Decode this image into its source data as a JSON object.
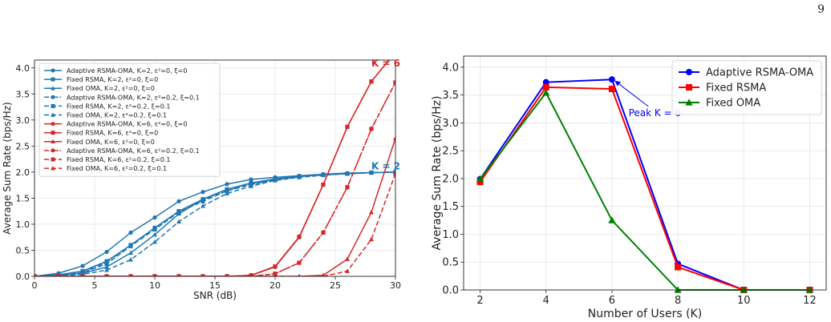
{
  "page_number": "9",
  "chart_data": [
    {
      "type": "line",
      "xlabel": "SNR (dB)",
      "ylabel": "Average Sum Rate (bps/Hz)",
      "xlim": [
        0,
        30
      ],
      "ylim": [
        0,
        4.15
      ],
      "xticks": [
        "0",
        "5",
        "10",
        "15",
        "20",
        "25",
        "30"
      ],
      "yticks": [
        "0.0",
        "0.5",
        "1.0",
        "1.5",
        "2.0",
        "2.5",
        "3.0",
        "3.5",
        "4.0"
      ],
      "grid": true,
      "legend_position": "top-left",
      "colors": {
        "k2": "#1f77b4",
        "k6": "#d62728"
      },
      "annotations": [
        {
          "text": "K = 6",
          "x": 29.2,
          "y": 4.03,
          "color": "#d62728"
        },
        {
          "text": "K = 2",
          "x": 29.2,
          "y": 2.05,
          "color": "#1f77b4"
        }
      ],
      "x": [
        0,
        2,
        4,
        6,
        8,
        10,
        12,
        14,
        16,
        18,
        20,
        22,
        24,
        26,
        28,
        30
      ],
      "series": [
        {
          "name": "Adaptive RSMA-OMA,  K=2, ε²=0, ξ=0",
          "color": "#1f77b4",
          "dash": "solid",
          "marker": "circle",
          "values": [
            0.0,
            0.06,
            0.2,
            0.47,
            0.84,
            1.13,
            1.44,
            1.62,
            1.77,
            1.86,
            1.9,
            1.93,
            1.96,
            1.98,
            1.99,
            2.0
          ]
        },
        {
          "name": "Fixed RSMA,  K=2, ε²=0, ξ=0",
          "color": "#1f77b4",
          "dash": "solid",
          "marker": "square",
          "values": [
            0.0,
            0.03,
            0.1,
            0.29,
            0.6,
            0.93,
            1.25,
            1.48,
            1.67,
            1.79,
            1.87,
            1.92,
            1.95,
            1.97,
            1.99,
            2.0
          ]
        },
        {
          "name": "Fixed OMA,  K=2, ε²=0, ξ=0",
          "color": "#1f77b4",
          "dash": "solid",
          "marker": "triangle",
          "values": [
            0.0,
            0.02,
            0.06,
            0.18,
            0.45,
            0.8,
            1.2,
            1.48,
            1.67,
            1.79,
            1.87,
            1.92,
            1.95,
            1.97,
            1.99,
            2.0
          ]
        },
        {
          "name": "Adaptive RSMA-OMA,  K=2, ε²=0.2, ξ=0.1",
          "color": "#1f77b4",
          "dash": "dashdot",
          "marker": "circle",
          "values": [
            0.0,
            0.02,
            0.08,
            0.27,
            0.6,
            0.93,
            1.25,
            1.46,
            1.65,
            1.77,
            1.85,
            1.91,
            1.95,
            1.97,
            1.99,
            2.0
          ]
        },
        {
          "name": "Fixed RSMA,  K=2, ε²=0.2, ξ=0.1",
          "color": "#1f77b4",
          "dash": "dashed",
          "marker": "square",
          "values": [
            0.0,
            0.02,
            0.07,
            0.24,
            0.58,
            0.9,
            1.23,
            1.44,
            1.64,
            1.76,
            1.85,
            1.91,
            1.95,
            1.97,
            1.99,
            2.0
          ]
        },
        {
          "name": "Fixed OMA,  K=2, ε²=0.2, ξ=0.1",
          "color": "#1f77b4",
          "dash": "dashed",
          "marker": "triangle",
          "values": [
            0.0,
            0.01,
            0.04,
            0.12,
            0.32,
            0.66,
            1.05,
            1.35,
            1.59,
            1.73,
            1.84,
            1.9,
            1.94,
            1.97,
            1.99,
            2.0
          ]
        },
        {
          "name": "Adaptive RSMA-OMA,  K=6, ε²=0, ξ=0",
          "color": "#d62728",
          "dash": "solid",
          "marker": "circle",
          "values": [
            0,
            0,
            0,
            0,
            0,
            0,
            0,
            0,
            0,
            0.02,
            0.18,
            0.75,
            1.76,
            2.87,
            3.74,
            4.3
          ]
        },
        {
          "name": "Fixed RSMA,  K=6, ε²=0, ξ=0",
          "color": "#d62728",
          "dash": "solid",
          "marker": "square",
          "values": [
            0,
            0,
            0,
            0,
            0,
            0,
            0,
            0,
            0,
            0.02,
            0.19,
            0.76,
            1.76,
            2.87,
            3.74,
            4.3
          ]
        },
        {
          "name": "Fixed OMA,  K=6, ε²=0, ξ=0",
          "color": "#d62728",
          "dash": "solid",
          "marker": "triangle",
          "values": [
            0,
            0,
            0,
            0,
            0,
            0,
            0,
            0,
            0,
            0,
            0,
            0,
            0.02,
            0.33,
            1.23,
            2.65
          ]
        },
        {
          "name": "Adaptive RSMA-OMA,  K=6, ε²=0.2, ξ=0.1",
          "color": "#d62728",
          "dash": "dashdot",
          "marker": "circle",
          "values": [
            0,
            0,
            0,
            0,
            0,
            0,
            0,
            0,
            0,
            0,
            0.05,
            0.26,
            0.84,
            1.71,
            2.83,
            3.72
          ]
        },
        {
          "name": "Fixed RSMA,  K=6, ε²=0.2, ξ=0.1",
          "color": "#d62728",
          "dash": "dashed",
          "marker": "square",
          "values": [
            0,
            0,
            0,
            0,
            0,
            0,
            0,
            0,
            0,
            0,
            0.05,
            0.26,
            0.84,
            1.71,
            2.83,
            3.72
          ]
        },
        {
          "name": "Fixed OMA,  K=6, ε²=0.2, ξ=0.1",
          "color": "#d62728",
          "dash": "dashed",
          "marker": "triangle",
          "values": [
            0,
            0,
            0,
            0,
            0,
            0,
            0,
            0,
            0,
            0,
            0,
            0,
            0,
            0.1,
            0.71,
            1.97
          ]
        }
      ]
    },
    {
      "type": "line",
      "xlabel": "Number of Users (K)",
      "ylabel": "Average Sum Rate (bps/Hz)",
      "xlim": [
        1.5,
        12.5
      ],
      "ylim": [
        0,
        4.2
      ],
      "xticks": [
        "2",
        "4",
        "6",
        "8",
        "10",
        "12"
      ],
      "yticks": [
        "0.0",
        "0.5",
        "1.0",
        "1.5",
        "2.0",
        "2.5",
        "3.0",
        "3.5",
        "4.0"
      ],
      "grid": true,
      "legend_position": "top-right",
      "x": [
        2,
        4,
        6,
        8,
        10,
        12
      ],
      "series": [
        {
          "name": "Adaptive RSMA-OMA",
          "color": "#0000ff",
          "marker": "circle",
          "values": [
            1.99,
            3.73,
            3.78,
            0.47,
            0.0,
            0.0
          ]
        },
        {
          "name": "Fixed RSMA",
          "color": "#ff0000",
          "marker": "square",
          "values": [
            1.94,
            3.64,
            3.61,
            0.41,
            0.0,
            0.0
          ]
        },
        {
          "name": "Fixed OMA",
          "color": "#008000",
          "marker": "triangle",
          "values": [
            1.99,
            3.54,
            1.25,
            0.0,
            0.0,
            0.0
          ]
        }
      ],
      "annotations": [
        {
          "text": "Peak K = 6",
          "color": "#0000ff",
          "arrow_to_x": 6,
          "arrow_to_y": 3.78,
          "text_x": 7.3,
          "text_y": 3.18
        }
      ]
    }
  ]
}
